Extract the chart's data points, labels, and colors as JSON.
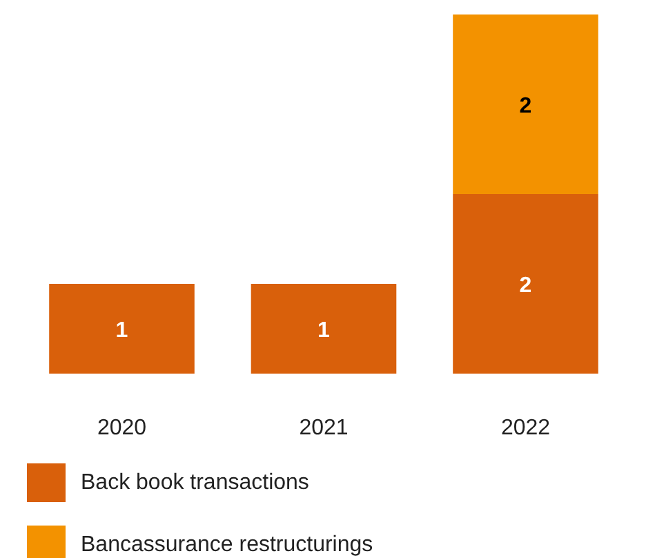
{
  "chart_data": {
    "type": "bar",
    "stacked": true,
    "data_labels": true,
    "legend": "bottom",
    "grid": false,
    "tick_labels": "x",
    "categories": [
      "2020",
      "2021",
      "2022"
    ],
    "series": [
      {
        "name": "Back book transactions",
        "color": "#d9600b",
        "values": [
          1,
          1,
          2
        ]
      },
      {
        "name": "Bancassurance restructurings",
        "color": "#f39200",
        "values": [
          null,
          null,
          2
        ]
      }
    ]
  }
}
